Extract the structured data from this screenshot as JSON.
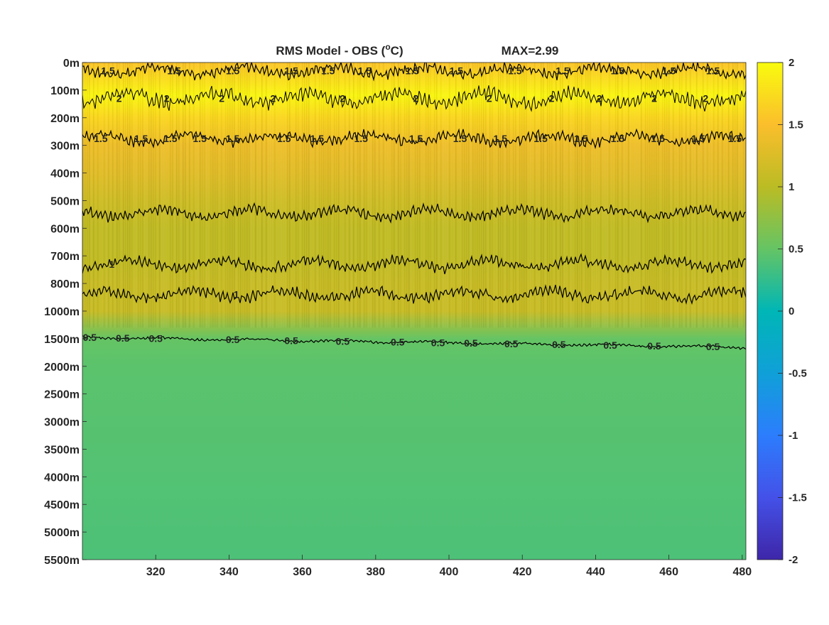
{
  "chart_data": {
    "type": "heatmap",
    "title": "RMS Model - OBS (",
    "title_superscript": "o",
    "title_suffix": "C)",
    "max_label": "MAX=2.99",
    "xlabel": "",
    "ylabel": "",
    "xlim": [
      300,
      481
    ],
    "x_ticks": [
      320,
      340,
      360,
      380,
      400,
      420,
      440,
      460,
      480
    ],
    "y_ticks": [
      "0m",
      "100m",
      "200m",
      "300m",
      "400m",
      "500m",
      "600m",
      "700m",
      "800m",
      "1000m",
      "1500m",
      "2000m",
      "2500m",
      "3000m",
      "3500m",
      "4000m",
      "4500m",
      "5000m",
      "5500m"
    ],
    "colorbar": {
      "colormap": "parula",
      "range": [
        -2,
        2
      ],
      "ticks": [
        "2",
        "1.5",
        "1",
        "0.5",
        "0",
        "-0.5",
        "-1",
        "-1.5",
        "-2"
      ]
    },
    "layer_values": [
      {
        "depth_index": 0.0,
        "value": 1.55
      },
      {
        "depth_index": 0.6,
        "value": 1.75
      },
      {
        "depth_index": 1.2,
        "value": 1.95
      },
      {
        "depth_index": 2.0,
        "value": 1.7
      },
      {
        "depth_index": 3.0,
        "value": 1.4
      },
      {
        "depth_index": 4.0,
        "value": 1.3
      },
      {
        "depth_index": 5.0,
        "value": 1.15
      },
      {
        "depth_index": 6.0,
        "value": 1.05
      },
      {
        "depth_index": 7.0,
        "value": 1.05
      },
      {
        "depth_index": 8.0,
        "value": 1.1
      },
      {
        "depth_index": 9.0,
        "value": 1.1
      },
      {
        "depth_index": 10.0,
        "value": 0.5
      },
      {
        "depth_index": 11.0,
        "value": 0.45
      },
      {
        "depth_index": 14.0,
        "value": 0.42
      },
      {
        "depth_index": 18.0,
        "value": 0.38
      }
    ],
    "contours": [
      {
        "level": 1.5,
        "label": "1.5",
        "depth_index": 0.3,
        "label_xs": [
          307,
          325,
          341,
          357,
          367,
          377,
          390,
          402,
          418,
          431,
          446,
          460,
          472
        ]
      },
      {
        "level": 2,
        "label": "2",
        "depth_index": 1.3,
        "label_xs": [
          310,
          323,
          338,
          352,
          371,
          391,
          411,
          428,
          441,
          456,
          470
        ]
      },
      {
        "level": 1.5,
        "label": "1.5",
        "depth_index": 2.75,
        "label_xs": [
          305,
          316,
          324,
          332,
          341,
          355,
          364,
          376,
          391,
          403,
          414,
          425,
          436,
          446,
          457,
          468,
          478
        ]
      },
      {
        "level": 1,
        "label": "1",
        "depth_index": 5.45,
        "label_xs": []
      },
      {
        "level": 1,
        "label": "1",
        "depth_index": 7.3,
        "label_xs": [
          308
        ]
      },
      {
        "level": 1,
        "label": "1",
        "depth_index": 8.4,
        "label_xs": [
          342
        ]
      },
      {
        "level": 0.5,
        "label": "0.5",
        "depth_index": 9.95,
        "label_xs": [
          302,
          311,
          320,
          341,
          357,
          371,
          386,
          397,
          406,
          417,
          430,
          444,
          456,
          472
        ]
      }
    ]
  }
}
